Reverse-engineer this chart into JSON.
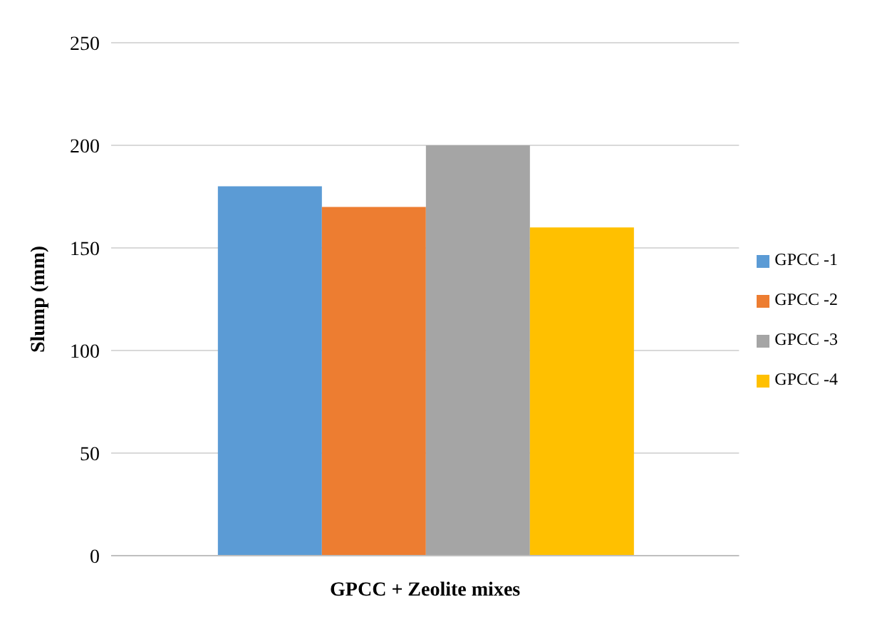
{
  "chart_data": {
    "type": "bar",
    "xlabel": "GPCC + Zeolite mixes",
    "ylabel": "Slump (mm)",
    "categories": [
      null
    ],
    "series": [
      {
        "name": "GPCC -1",
        "color": "#5b9bd5",
        "values": [
          180
        ]
      },
      {
        "name": "GPCC -2",
        "color": "#ed7d31",
        "values": [
          170
        ]
      },
      {
        "name": "GPCC -3",
        "color": "#a5a5a5",
        "values": [
          200
        ]
      },
      {
        "name": "GPCC -4",
        "color": "#ffc000",
        "values": [
          160
        ]
      }
    ],
    "ylim": [
      0,
      250
    ],
    "yticks": [
      0,
      50,
      100,
      150,
      200,
      250
    ],
    "grid": "y",
    "legend": "right"
  }
}
